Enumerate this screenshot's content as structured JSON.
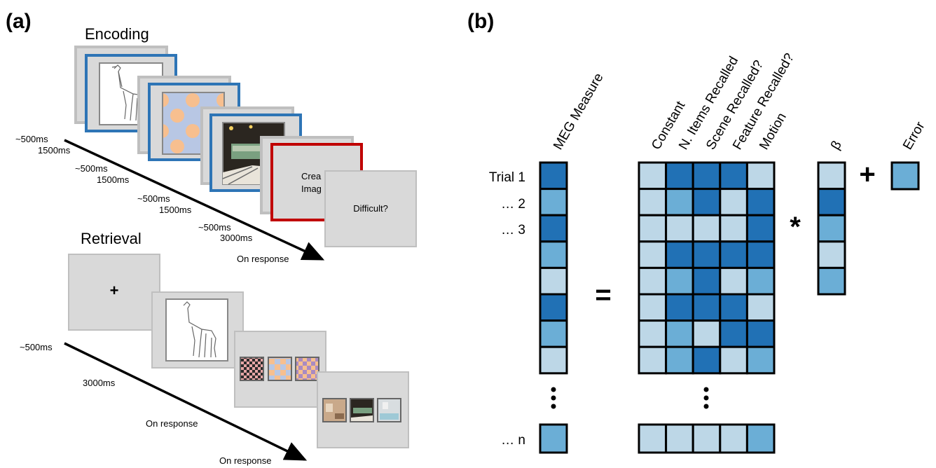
{
  "panels": {
    "a_label": "(a)",
    "b_label": "(b)"
  },
  "encoding": {
    "title": "Encoding",
    "timings": [
      {
        "fix": "~500ms",
        "stim": "1500ms"
      },
      {
        "fix": "~500ms",
        "stim": "1500ms"
      },
      {
        "fix": "~500ms",
        "stim": "1500ms"
      },
      {
        "fix": "~500ms",
        "stim": "3000ms"
      }
    ],
    "end_label": "On response",
    "create_text_line1": "Crea",
    "create_text_line2": "Imag",
    "difficult_text": "Difficult?"
  },
  "retrieval": {
    "title": "Retrieval",
    "fixation_symbol": "+",
    "t1": "~500ms",
    "t2": "3000ms",
    "t3": "On response",
    "t4": "On response"
  },
  "design": {
    "row_labels": [
      "Trial 1",
      "… 2",
      "… 3",
      "… n"
    ],
    "meg_label": "MEG Measure",
    "predictor_labels": [
      "Constant",
      "N. Items Recalled",
      "Scene Recalled?",
      "Feature Recalled?",
      "Motion"
    ],
    "beta_label": "β",
    "error_label": "Error",
    "equals": "=",
    "times": "*",
    "plus": "+",
    "colors": {
      "L": "#bdd7e7",
      "M": "#6baed6",
      "D": "#2171b5"
    },
    "meg_cells": [
      "D",
      "M",
      "D",
      "M",
      "L",
      "D",
      "M",
      "L"
    ],
    "meg_last": "M",
    "matrix_rows": [
      [
        "L",
        "D",
        "D",
        "D",
        "L"
      ],
      [
        "L",
        "M",
        "D",
        "L",
        "D"
      ],
      [
        "L",
        "L",
        "L",
        "L",
        "D"
      ],
      [
        "L",
        "D",
        "D",
        "D",
        "D"
      ],
      [
        "L",
        "M",
        "D",
        "L",
        "M"
      ],
      [
        "L",
        "D",
        "D",
        "D",
        "L"
      ],
      [
        "L",
        "M",
        "L",
        "D",
        "D"
      ],
      [
        "L",
        "M",
        "D",
        "L",
        "M"
      ]
    ],
    "matrix_last": [
      "L",
      "L",
      "L",
      "L",
      "M"
    ],
    "beta_cells": [
      "L",
      "D",
      "M",
      "L",
      "M"
    ],
    "error_cell": "M"
  }
}
